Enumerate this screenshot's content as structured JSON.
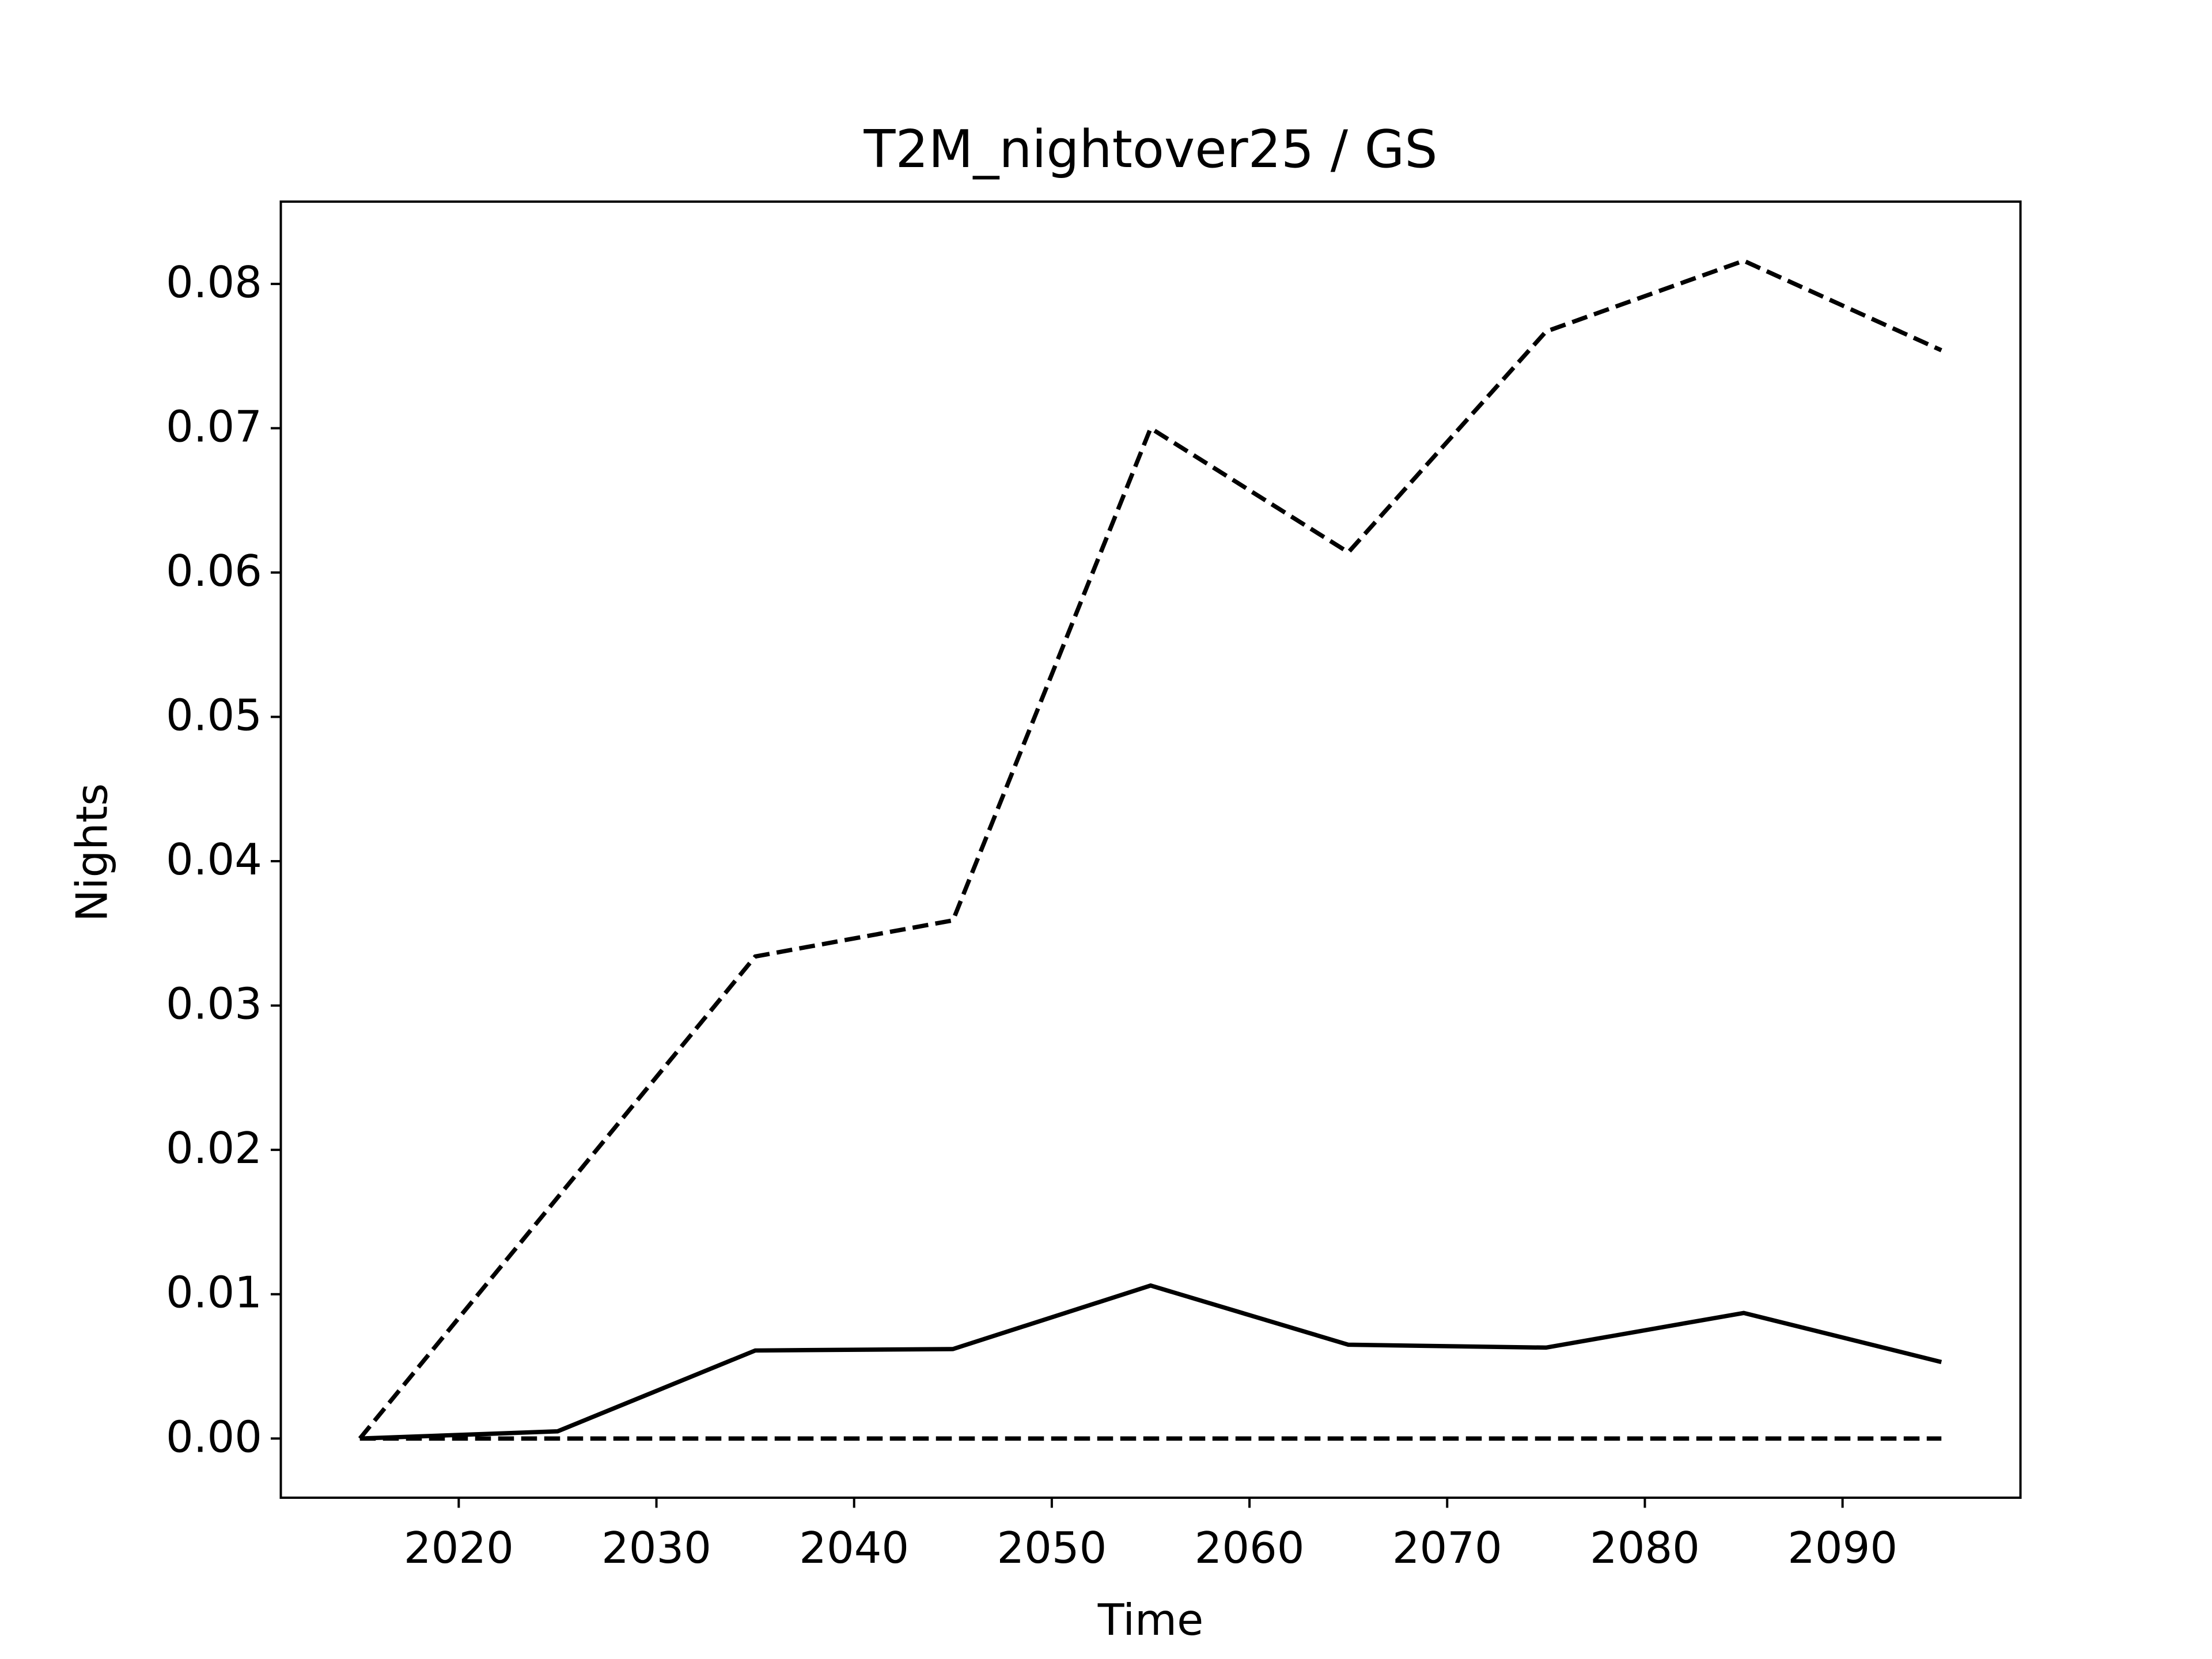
{
  "chart_data": {
    "type": "line",
    "title": "T2M_nightover25 / GS",
    "xlabel": "Time",
    "ylabel": "Nights",
    "x": [
      2015,
      2025,
      2035,
      2045,
      2055,
      2065,
      2075,
      2085,
      2095
    ],
    "series": [
      {
        "color": "#000000",
        "dash": true,
        "values": [
          0,
          0.0167,
          0.0334,
          0.0359,
          0.07,
          0.0614,
          0.0767,
          0.0816,
          0.0754
        ]
      },
      {
        "color": "#000000",
        "dash": false,
        "values": [
          0,
          0.0005,
          0.0061,
          0.0062,
          0.0106,
          0.0065,
          0.0063,
          0.0087,
          0.0053
        ]
      },
      {
        "color": "#000000",
        "dash": true,
        "values": [
          0,
          0,
          0,
          0,
          0,
          0,
          0,
          0,
          0
        ]
      }
    ],
    "xlim": [
      2011,
      2099
    ],
    "xticks": [
      2020,
      2030,
      2040,
      2050,
      2060,
      2070,
      2080,
      2090
    ],
    "ylim": [
      -0.0041,
      0.0857
    ],
    "yticks": [
      {
        "value": 0,
        "label": "0.00"
      },
      {
        "value": 0.01,
        "label": "0.01"
      },
      {
        "value": 0.02,
        "label": "0.02"
      },
      {
        "value": 0.03,
        "label": "0.03"
      },
      {
        "value": 0.04,
        "label": "0.04"
      },
      {
        "value": 0.05,
        "label": "0.05"
      },
      {
        "value": 0.06,
        "label": "0.06"
      },
      {
        "value": 0.07,
        "label": "0.07"
      },
      {
        "value": 0.08,
        "label": "0.08"
      }
    ],
    "grid": false
  }
}
